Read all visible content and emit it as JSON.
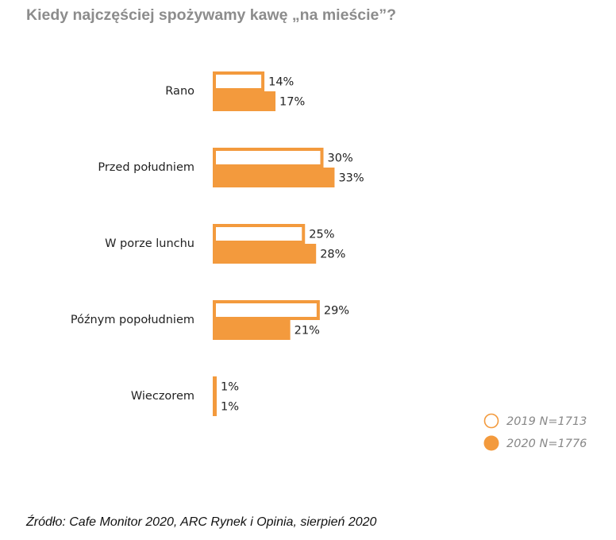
{
  "chart_data": {
    "type": "bar",
    "orientation": "horizontal",
    "title": "Kiedy najczęściej spożywamy kawę „na mieście”?",
    "categories": [
      "Rano",
      "Przed południem",
      "W porze lunchu",
      "Późnym popołudniem",
      "Wieczorem"
    ],
    "series": [
      {
        "name": "2019 N=1713",
        "values": [
          14,
          30,
          25,
          29,
          1
        ],
        "labels": [
          "14%",
          "30%",
          "25%",
          "29%",
          "1%"
        ],
        "style": "outline",
        "color": "#F39A3D"
      },
      {
        "name": "2020 N=1776",
        "values": [
          17,
          33,
          28,
          21,
          1
        ],
        "labels": [
          "17%",
          "33%",
          "28%",
          "21%",
          "1%"
        ],
        "style": "filled",
        "color": "#F39A3D"
      }
    ],
    "xlim": [
      0,
      35
    ],
    "unit": "%",
    "legend_position": "bottom-right"
  },
  "source": "Źródło: Cafe Monitor 2020, ARC Rynek i Opinia, sierpień 2020"
}
